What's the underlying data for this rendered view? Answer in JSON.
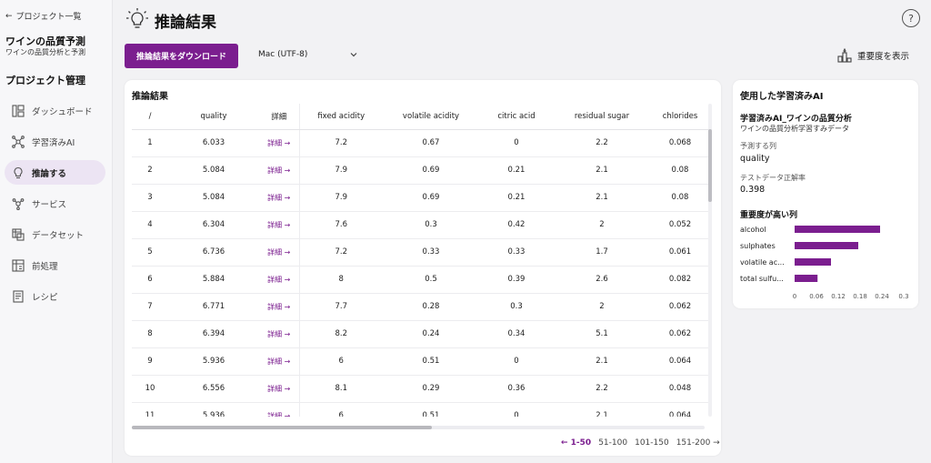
{
  "sidebar": {
    "back_label": "プロジェクト一覧",
    "project_title": "ワインの品質予測",
    "project_subtitle": "ワインの品質分析と予測",
    "section_title": "プロジェクト管理",
    "items": [
      {
        "label": "ダッシュボード",
        "icon": "dashboard-icon"
      },
      {
        "label": "学習済みAI",
        "icon": "network-icon"
      },
      {
        "label": "推論する",
        "icon": "lightbulb-icon",
        "active": true
      },
      {
        "label": "サービス",
        "icon": "service-icon"
      },
      {
        "label": "データセット",
        "icon": "dataset-icon"
      },
      {
        "label": "前処理",
        "icon": "preprocess-icon"
      },
      {
        "label": "レシピ",
        "icon": "recipe-icon"
      }
    ]
  },
  "header": {
    "title": "推論結果",
    "help": "?"
  },
  "toolbar": {
    "download_label": "推論結果をダウンロード",
    "encoding_value": "Mac (UTF-8)",
    "importance_label": "重要度を表示"
  },
  "results": {
    "title": "推論結果",
    "columns": [
      "/",
      "quality",
      "詳細",
      "fixed acidity",
      "volatile acidity",
      "citric acid",
      "residual sugar",
      "chlorides"
    ],
    "detail_link": "詳細 →",
    "rows": [
      [
        "1",
        "6.033",
        "7.2",
        "0.67",
        "0",
        "2.2",
        "0.068"
      ],
      [
        "2",
        "5.084",
        "7.9",
        "0.69",
        "0.21",
        "2.1",
        "0.08"
      ],
      [
        "3",
        "5.084",
        "7.9",
        "0.69",
        "0.21",
        "2.1",
        "0.08"
      ],
      [
        "4",
        "6.304",
        "7.6",
        "0.3",
        "0.42",
        "2",
        "0.052"
      ],
      [
        "5",
        "6.736",
        "7.2",
        "0.33",
        "0.33",
        "1.7",
        "0.061"
      ],
      [
        "6",
        "5.884",
        "8",
        "0.5",
        "0.39",
        "2.6",
        "0.082"
      ],
      [
        "7",
        "6.771",
        "7.7",
        "0.28",
        "0.3",
        "2",
        "0.062"
      ],
      [
        "8",
        "6.394",
        "8.2",
        "0.24",
        "0.34",
        "5.1",
        "0.062"
      ],
      [
        "9",
        "5.936",
        "6",
        "0.51",
        "0",
        "2.1",
        "0.064"
      ],
      [
        "10",
        "6.556",
        "8.1",
        "0.29",
        "0.36",
        "2.2",
        "0.048"
      ],
      [
        "11",
        "5.936",
        "6",
        "0.51",
        "0",
        "2.1",
        "0.064"
      ]
    ],
    "pagination": {
      "current": "← 1-50",
      "pages": [
        "51-100",
        "101-150",
        "151-200 →"
      ]
    }
  },
  "model": {
    "title": "使用した学習済みAI",
    "name": "学習済みAI_ワインの品質分析",
    "data_name": "ワインの品質分析学習すみデータ",
    "target_label": "予測する列",
    "target_value": "quality",
    "accuracy_label": "テストデータ正解率",
    "accuracy_value": "0.398",
    "importance_title": "重要度が高い列"
  },
  "chart_data": {
    "type": "bar",
    "orientation": "horizontal",
    "categories": [
      "alcohol",
      "sulphates",
      "volatile ac...",
      "total sulfu..."
    ],
    "values": [
      0.235,
      0.175,
      0.1,
      0.063
    ],
    "xlim": [
      0,
      0.3
    ],
    "xticks": [
      "0",
      "0.06",
      "0.12",
      "0.18",
      "0.24",
      "0.3"
    ],
    "bar_color": "#7b1e8f"
  }
}
